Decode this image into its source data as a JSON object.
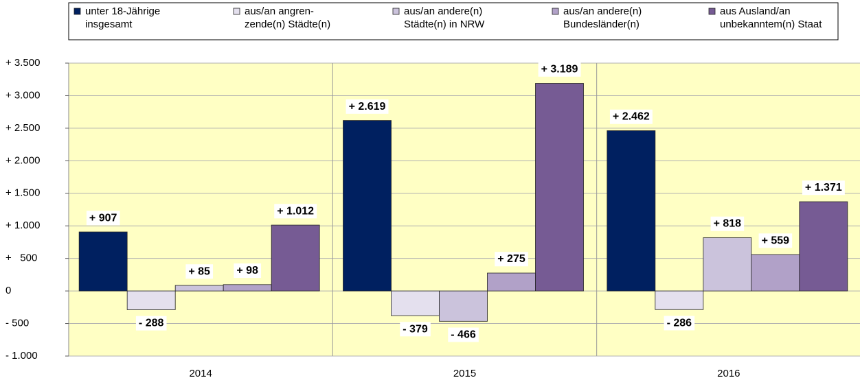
{
  "chart_data": {
    "type": "bar",
    "categories": [
      "2014",
      "2015",
      "2016"
    ],
    "series": [
      {
        "name": [
          "unter 18-Jährige",
          "insgesamt"
        ],
        "color": "#002060",
        "values": [
          907,
          2619,
          2462
        ],
        "value_labels": [
          "+ 907",
          "+ 2.619",
          "+ 2.462"
        ]
      },
      {
        "name": [
          "aus/an angren-",
          "zende(n) Städte(n)"
        ],
        "color": "#e4e0ee",
        "values": [
          -288,
          -379,
          -286
        ],
        "value_labels": [
          "- 288",
          "- 379",
          "- 286"
        ]
      },
      {
        "name": [
          "aus/an andere(n)",
          "Städte(n) in NRW"
        ],
        "color": "#cbc3dc",
        "values": [
          85,
          -466,
          818
        ],
        "value_labels": [
          "+ 85",
          "- 466",
          "+ 818"
        ]
      },
      {
        "name": [
          "aus/an andere(n)",
          "Bundesländer(n)"
        ],
        "color": "#b1a1c8",
        "values": [
          98,
          275,
          559
        ],
        "value_labels": [
          "+ 98",
          "+ 275",
          "+ 559"
        ]
      },
      {
        "name": [
          "aus Ausland/an",
          "unbekanntem(n) Staat"
        ],
        "color": "#765b94",
        "values": [
          1012,
          3189,
          1371
        ],
        "value_labels": [
          "+ 1.012",
          "+ 3.189",
          "+ 1.371"
        ]
      }
    ],
    "ylim": [
      -1000,
      3500
    ],
    "yticks": [
      {
        "value": -1000,
        "label": "- 1.000"
      },
      {
        "value": -500,
        "label": "- 500"
      },
      0,
      {
        "value": 500,
        "label": "+   500"
      },
      {
        "value": 1000,
        "label": "+ 1.000"
      },
      {
        "value": 1500,
        "label": "+ 1.500"
      },
      {
        "value": 2000,
        "label": "+ 2.000"
      },
      {
        "value": 2500,
        "label": "+ 2.500"
      },
      {
        "value": 3000,
        "label": "+ 3.000"
      },
      {
        "value": 3500,
        "label": "+ 3.500"
      }
    ],
    "grid": true
  }
}
